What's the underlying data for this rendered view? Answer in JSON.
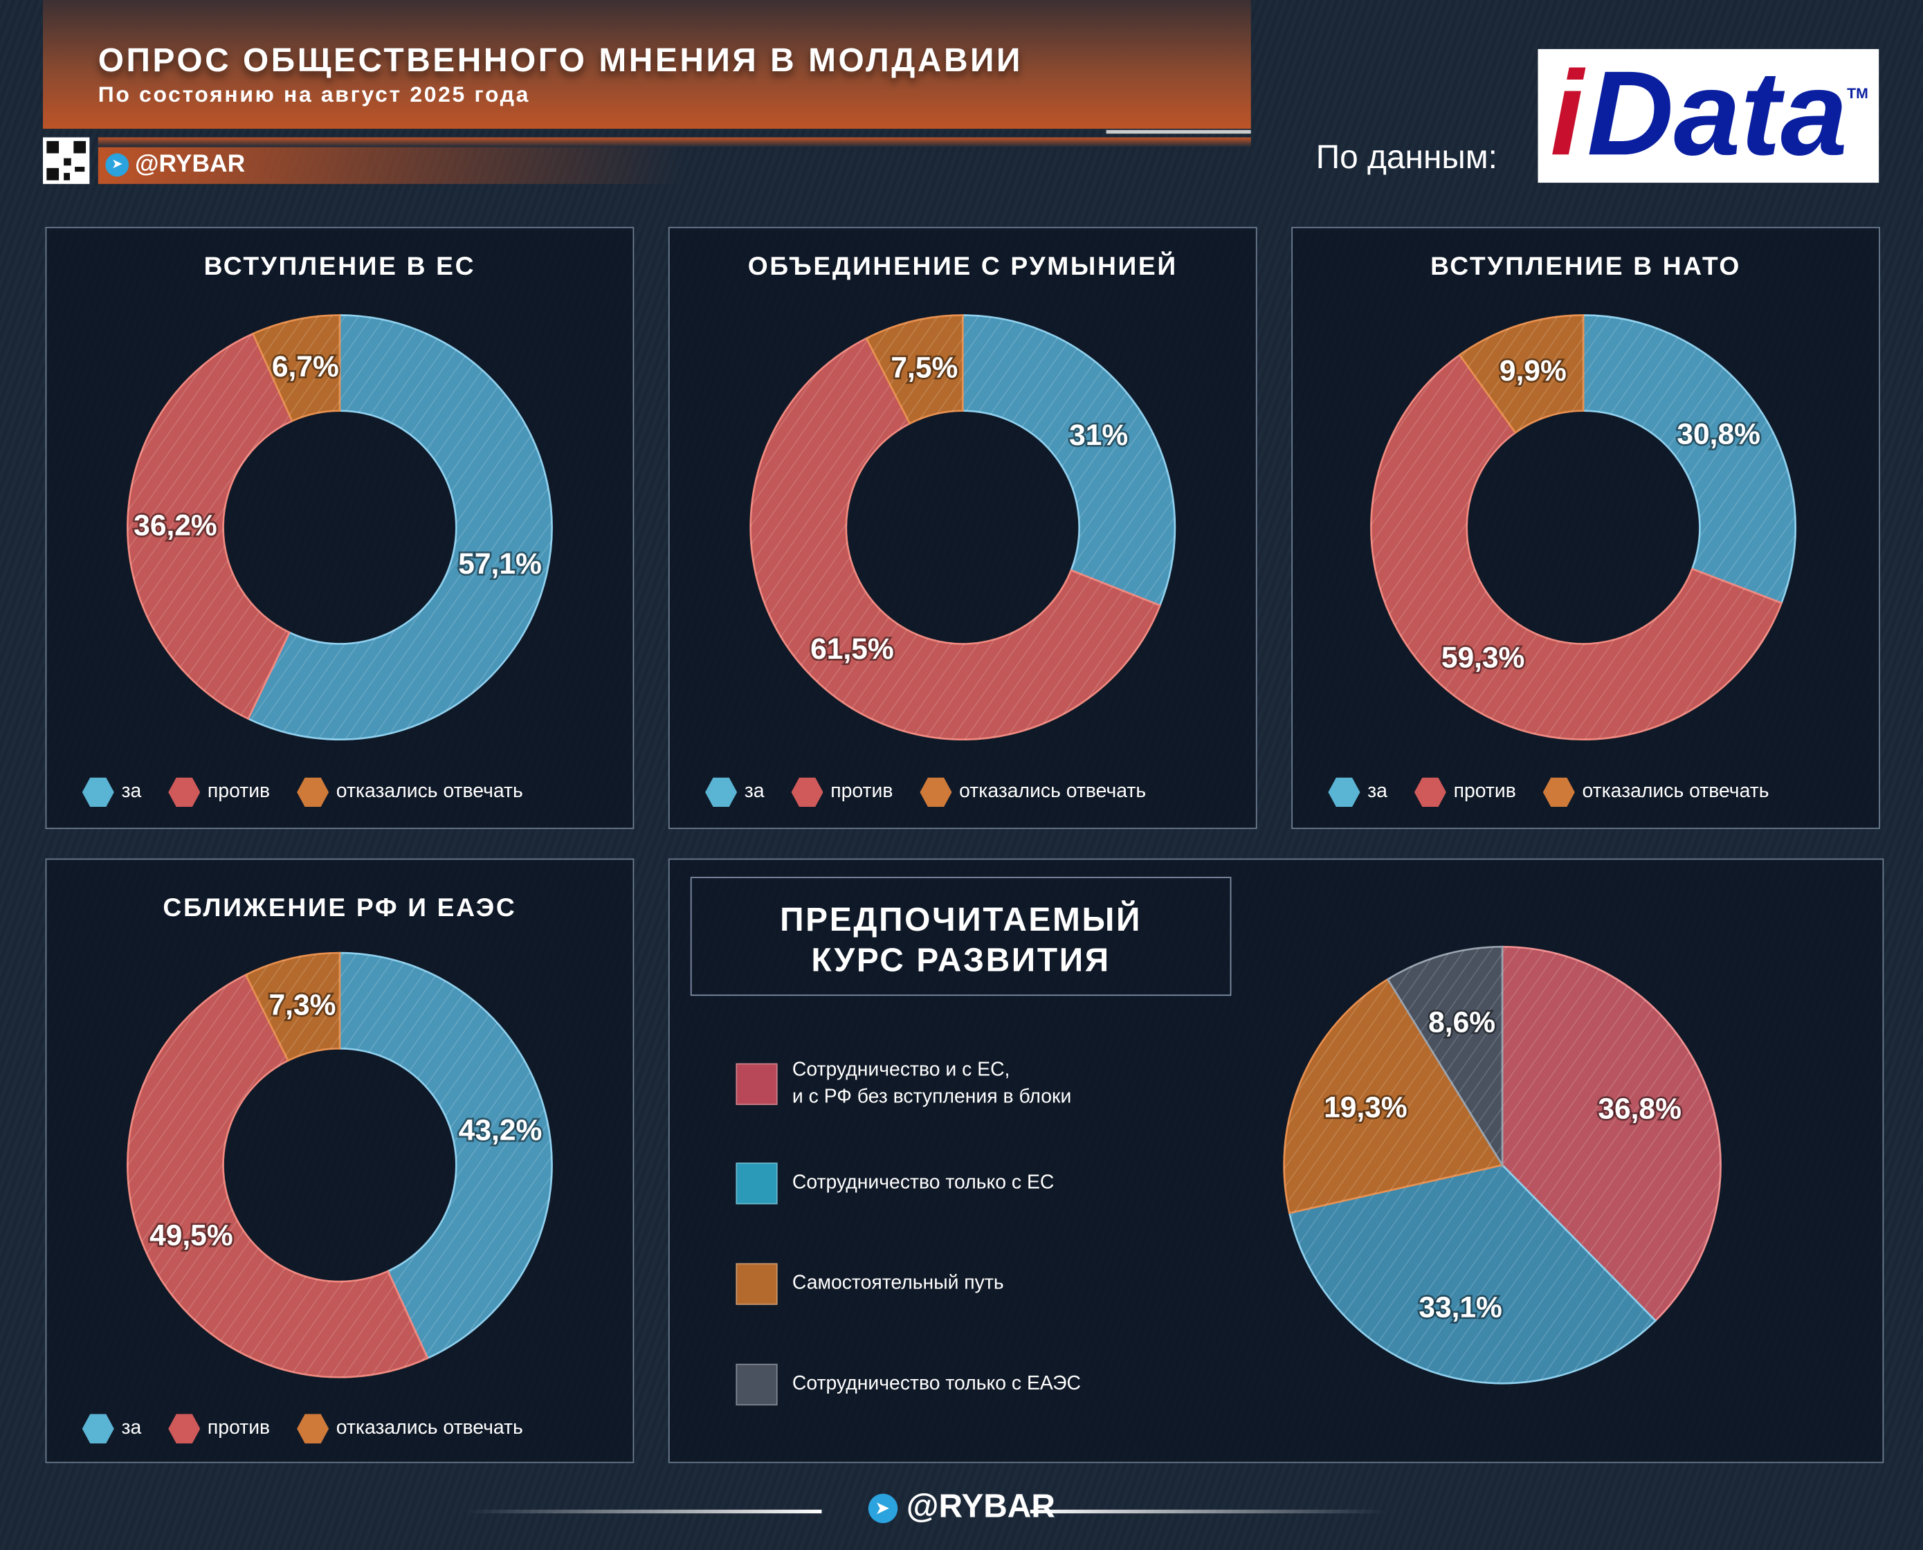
{
  "header": {
    "title": "ОПРОС ОБЩЕСТВЕННОГО МНЕНИЯ В МОЛДАВИИ",
    "subtitle": "По состоянию на август 2025 года",
    "handle": "@RYBAR",
    "source_label": "По данным:",
    "logo_i": "i",
    "logo_data": "Data",
    "logo_tm": "TM"
  },
  "legend": {
    "za": "за",
    "protiv": "против",
    "otkaz": "отказались отвечать"
  },
  "colors": {
    "za": "#4a96b8",
    "protiv": "#c25858",
    "otkaz": "#b46a2c",
    "eaes": "#4a5260"
  },
  "chart_data": [
    {
      "type": "pie",
      "title": "ВСТУПЛЕНИЕ В ЕС",
      "categories": [
        "за",
        "против",
        "отказались отвечать"
      ],
      "values": [
        57.1,
        36.2,
        6.7
      ],
      "labels": [
        "57,1%",
        "36,2%",
        "6,7%"
      ]
    },
    {
      "type": "pie",
      "title": "ОБЪЕДИНЕНИЕ С РУМЫНИЕЙ",
      "categories": [
        "за",
        "против",
        "отказались отвечать"
      ],
      "values": [
        31,
        61.5,
        7.5
      ],
      "labels": [
        "31%",
        "61,5%",
        "7,5%"
      ]
    },
    {
      "type": "pie",
      "title": "ВСТУПЛЕНИЕ В НАТО",
      "categories": [
        "за",
        "против",
        "отказались отвечать"
      ],
      "values": [
        30.8,
        59.3,
        9.9
      ],
      "labels": [
        "30,8%",
        "59,3%",
        "9,9%"
      ]
    },
    {
      "type": "pie",
      "title": "СБЛИЖЕНИЕ РФ И ЕАЭС",
      "categories": [
        "за",
        "против",
        "отказались отвечать"
      ],
      "values": [
        43.2,
        49.5,
        7.3
      ],
      "labels": [
        "43,2%",
        "49,5%",
        "7,3%"
      ]
    },
    {
      "type": "pie",
      "title": "ПРЕДПОЧИТАЕМЫЙ КУРС РАЗВИТИЯ",
      "title_lines": [
        "ПРЕДПОЧИТАЕМЫЙ",
        "КУРС РАЗВИТИЯ"
      ],
      "categories": [
        "Сотрудничество и с ЕС, и с РФ без вступления в блоки",
        "Сотрудничество только с ЕС",
        "Самостоятельный путь",
        "Сотрудничество только с ЕАЭС"
      ],
      "legend_lines": [
        [
          "Сотрудничество и с ЕС,",
          "и с РФ без вступления в блоки"
        ],
        [
          "Сотрудничество только с ЕС"
        ],
        [
          "Самостоятельный путь"
        ],
        [
          "Сотрудничество только с ЕАЭС"
        ]
      ],
      "values": [
        36.8,
        33.1,
        19.3,
        8.6
      ],
      "labels": [
        "36,8%",
        "33,1%",
        "19,3%",
        "8,6%"
      ]
    }
  ],
  "footer": {
    "handle": "@RYBAR"
  }
}
